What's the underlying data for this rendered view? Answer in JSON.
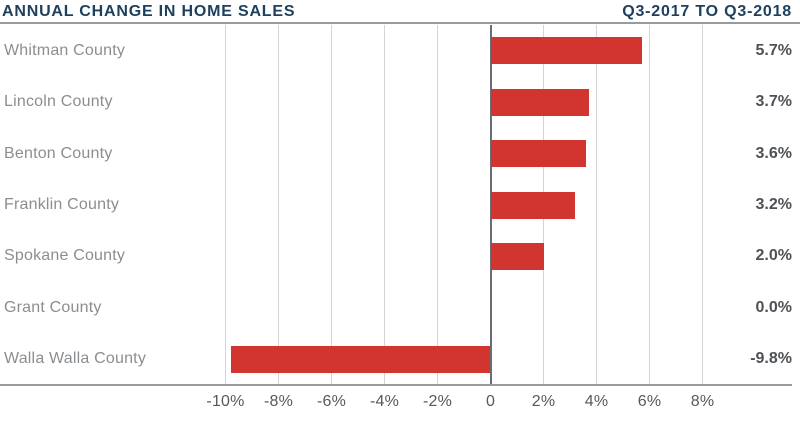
{
  "header": {
    "title": "ANNUAL CHANGE IN HOME SALES",
    "period": "Q3-2017 TO Q3-2018"
  },
  "colors": {
    "bar_red": "#d23530",
    "header_navy": "#1e405f",
    "gridline": "#d2d4d6",
    "zero_line": "#696e74",
    "axis_line": "#979ca1",
    "row_label": "#8b8e91",
    "value_label": "#4e5256",
    "tick_label": "#55595d"
  },
  "chart_data": {
    "type": "bar",
    "orientation": "horizontal",
    "title": "ANNUAL CHANGE IN HOME SALES",
    "subtitle": "Q3-2017 TO Q3-2018",
    "categories": [
      "Whitman County",
      "Lincoln County",
      "Benton County",
      "Franklin County",
      "Spokane County",
      "Grant County",
      "Walla Walla County"
    ],
    "values": [
      5.7,
      3.7,
      3.6,
      3.2,
      2.0,
      0.0,
      -9.8
    ],
    "value_labels": [
      "5.7%",
      "3.7%",
      "3.6%",
      "3.2%",
      "2.0%",
      "0.0%",
      "-9.8%"
    ],
    "unit": "%",
    "x_ticks": [
      -10,
      -8,
      -6,
      -4,
      -2,
      0,
      2,
      4,
      6,
      8
    ],
    "x_tick_labels": [
      "-10%",
      "-8%",
      "-6%",
      "-4%",
      "-2%",
      "0",
      "2%",
      "4%",
      "6%",
      "8%"
    ],
    "xlim": [
      -10,
      8
    ],
    "grid": true,
    "legend": false
  }
}
